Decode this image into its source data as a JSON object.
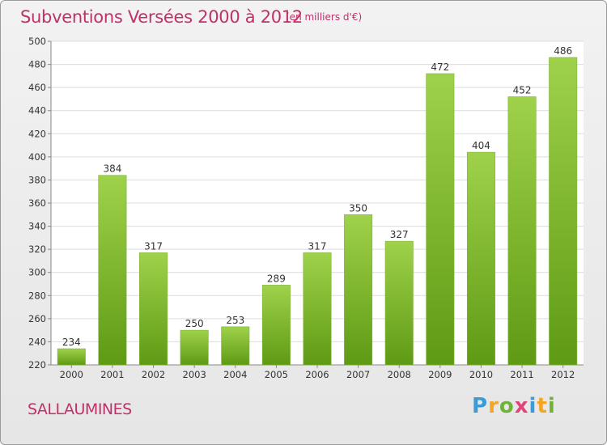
{
  "header": {
    "title": "Subventions Versées 2000 à 2012",
    "unit": "(en milliers d'€)"
  },
  "footer": {
    "commune": "SALLAUMINES",
    "logo_letters": [
      {
        "char": "P",
        "color": "#3a9bd8"
      },
      {
        "char": "r",
        "color": "#f3a623"
      },
      {
        "char": "o",
        "color": "#6fb23a"
      },
      {
        "char": "x",
        "color": "#e0447a"
      },
      {
        "char": "i",
        "color": "#3a9bd8"
      },
      {
        "char": "t",
        "color": "#f3a623"
      },
      {
        "char": "i",
        "color": "#6fb23a"
      }
    ]
  },
  "colors": {
    "accent": "#c0306a",
    "bar_light": "#9fd24a",
    "bar_dark": "#5f9a14"
  },
  "chart_data": {
    "type": "bar",
    "title": "Subventions Versées 2000 à 2012",
    "subtitle": "(en milliers d'€)",
    "xlabel": "",
    "ylabel": "",
    "categories": [
      "2000",
      "2001",
      "2002",
      "2003",
      "2004",
      "2005",
      "2006",
      "2007",
      "2008",
      "2009",
      "2010",
      "2011",
      "2012"
    ],
    "values": [
      234,
      384,
      317,
      250,
      253,
      289,
      317,
      350,
      327,
      472,
      404,
      452,
      486
    ],
    "ylim": [
      220,
      500
    ],
    "yticks": [
      220,
      240,
      260,
      280,
      300,
      320,
      340,
      360,
      380,
      400,
      420,
      440,
      460,
      480,
      500
    ],
    "grid": true,
    "legend": "none"
  }
}
